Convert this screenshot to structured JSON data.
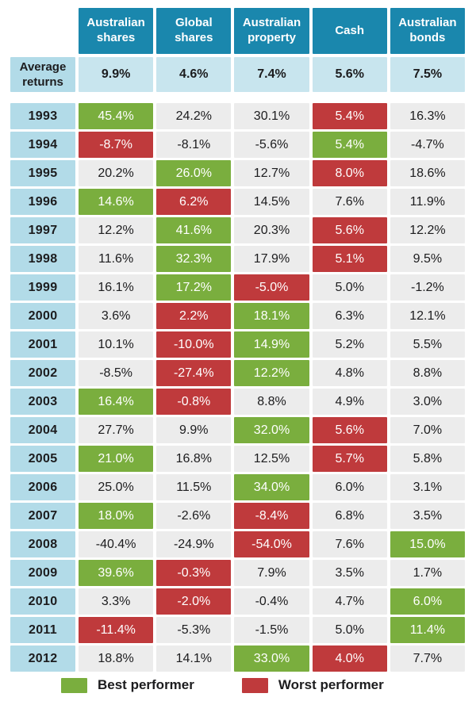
{
  "chart_data": {
    "type": "table",
    "columns": [
      "Australian shares",
      "Global shares",
      "Australian property",
      "Cash",
      "Australian bonds"
    ],
    "average_row": {
      "label": "Average returns",
      "values": [
        "9.9%",
        "4.6%",
        "7.4%",
        "5.6%",
        "7.5%"
      ]
    },
    "rows": [
      {
        "year": "1993",
        "values": [
          "45.4%",
          "24.2%",
          "30.1%",
          "5.4%",
          "16.3%"
        ],
        "highlights": [
          "best",
          "",
          "",
          "worst",
          ""
        ]
      },
      {
        "year": "1994",
        "values": [
          "-8.7%",
          "-8.1%",
          "-5.6%",
          "5.4%",
          "-4.7%"
        ],
        "highlights": [
          "worst",
          "",
          "",
          "best",
          ""
        ]
      },
      {
        "year": "1995",
        "values": [
          "20.2%",
          "26.0%",
          "12.7%",
          "8.0%",
          "18.6%"
        ],
        "highlights": [
          "",
          "best",
          "",
          "worst",
          ""
        ]
      },
      {
        "year": "1996",
        "values": [
          "14.6%",
          "6.2%",
          "14.5%",
          "7.6%",
          "11.9%"
        ],
        "highlights": [
          "best",
          "worst",
          "",
          "",
          ""
        ]
      },
      {
        "year": "1997",
        "values": [
          "12.2%",
          "41.6%",
          "20.3%",
          "5.6%",
          "12.2%"
        ],
        "highlights": [
          "",
          "best",
          "",
          "worst",
          ""
        ]
      },
      {
        "year": "1998",
        "values": [
          "11.6%",
          "32.3%",
          "17.9%",
          "5.1%",
          "9.5%"
        ],
        "highlights": [
          "",
          "best",
          "",
          "worst",
          ""
        ]
      },
      {
        "year": "1999",
        "values": [
          "16.1%",
          "17.2%",
          "-5.0%",
          "5.0%",
          "-1.2%"
        ],
        "highlights": [
          "",
          "best",
          "worst",
          "",
          ""
        ]
      },
      {
        "year": "2000",
        "values": [
          "3.6%",
          "2.2%",
          "18.1%",
          "6.3%",
          "12.1%"
        ],
        "highlights": [
          "",
          "worst",
          "best",
          "",
          ""
        ]
      },
      {
        "year": "2001",
        "values": [
          "10.1%",
          "-10.0%",
          "14.9%",
          "5.2%",
          "5.5%"
        ],
        "highlights": [
          "",
          "worst",
          "best",
          "",
          ""
        ]
      },
      {
        "year": "2002",
        "values": [
          "-8.5%",
          "-27.4%",
          "12.2%",
          "4.8%",
          "8.8%"
        ],
        "highlights": [
          "",
          "worst",
          "best",
          "",
          ""
        ]
      },
      {
        "year": "2003",
        "values": [
          "16.4%",
          "-0.8%",
          "8.8%",
          "4.9%",
          "3.0%"
        ],
        "highlights": [
          "best",
          "worst",
          "",
          "",
          ""
        ]
      },
      {
        "year": "2004",
        "values": [
          "27.7%",
          "9.9%",
          "32.0%",
          "5.6%",
          "7.0%"
        ],
        "highlights": [
          "",
          "",
          "best",
          "worst",
          ""
        ]
      },
      {
        "year": "2005",
        "values": [
          "21.0%",
          "16.8%",
          "12.5%",
          "5.7%",
          "5.8%"
        ],
        "highlights": [
          "best",
          "",
          "",
          "worst",
          ""
        ]
      },
      {
        "year": "2006",
        "values": [
          "25.0%",
          "11.5%",
          "34.0%",
          "6.0%",
          "3.1%"
        ],
        "highlights": [
          "",
          "",
          "best",
          "",
          ""
        ]
      },
      {
        "year": "2007",
        "values": [
          "18.0%",
          "-2.6%",
          "-8.4%",
          "6.8%",
          "3.5%"
        ],
        "highlights": [
          "best",
          "",
          "worst",
          "",
          ""
        ]
      },
      {
        "year": "2008",
        "values": [
          "-40.4%",
          "-24.9%",
          "-54.0%",
          "7.6%",
          "15.0%"
        ],
        "highlights": [
          "",
          "",
          "worst",
          "",
          "best"
        ]
      },
      {
        "year": "2009",
        "values": [
          "39.6%",
          "-0.3%",
          "7.9%",
          "3.5%",
          "1.7%"
        ],
        "highlights": [
          "best",
          "worst",
          "",
          "",
          ""
        ]
      },
      {
        "year": "2010",
        "values": [
          "3.3%",
          "-2.0%",
          "-0.4%",
          "4.7%",
          "6.0%"
        ],
        "highlights": [
          "",
          "worst",
          "",
          "",
          "best"
        ]
      },
      {
        "year": "2011",
        "values": [
          "-11.4%",
          "-5.3%",
          "-1.5%",
          "5.0%",
          "11.4%"
        ],
        "highlights": [
          "worst",
          "",
          "",
          "",
          "best"
        ]
      },
      {
        "year": "2012",
        "values": [
          "18.8%",
          "14.1%",
          "33.0%",
          "4.0%",
          "7.7%"
        ],
        "highlights": [
          "",
          "",
          "best",
          "worst",
          ""
        ]
      }
    ],
    "legend": [
      {
        "key": "best",
        "label": "Best performer",
        "color": "#7aae3e"
      },
      {
        "key": "worst",
        "label": "Worst performer",
        "color": "#bf3a3c"
      }
    ]
  },
  "colors": {
    "header_teal": "#1a87ad",
    "label_blue": "#b2dbe8",
    "average_blue": "#c8e5ee",
    "cell_gray": "#ececec",
    "best_green": "#7aae3e",
    "worst_red": "#bf3a3c",
    "text_dark": "#1c1c1e",
    "text_white": "#ffffff"
  }
}
